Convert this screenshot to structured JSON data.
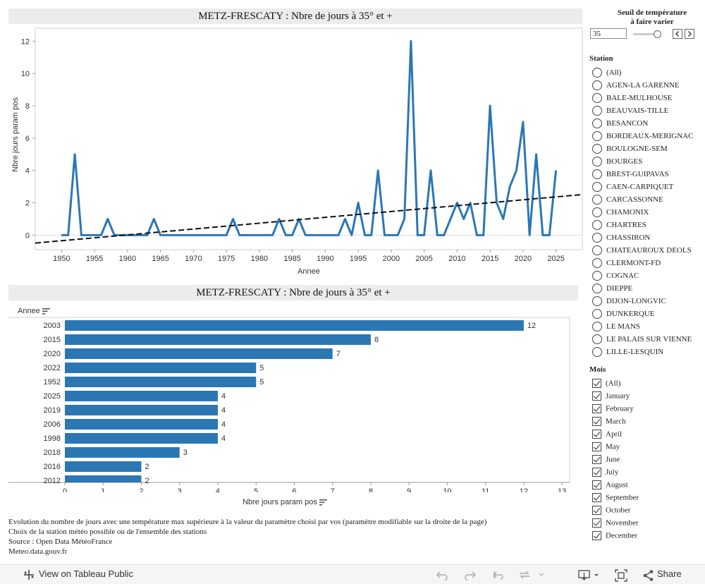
{
  "line_chart": {
    "title": "METZ-FRESCATY : Nbre de jours à  35° et +",
    "ylabel": "Nbre jours param pos",
    "xlabel": "Annee"
  },
  "bar_chart": {
    "title": "METZ-FRESCATY : Nbre de jours à 35° et +",
    "row_header": "Annee",
    "xlabel": "Nbre jours param pos"
  },
  "chart_data": [
    {
      "type": "line",
      "title": "METZ-FRESCATY : Nbre de jours à  35° et +",
      "xlabel": "Annee",
      "ylabel": "Nbre jours param pos",
      "x": [
        1950,
        1951,
        1952,
        1953,
        1954,
        1955,
        1956,
        1957,
        1958,
        1959,
        1960,
        1961,
        1962,
        1963,
        1964,
        1965,
        1966,
        1967,
        1968,
        1969,
        1970,
        1971,
        1972,
        1973,
        1974,
        1975,
        1976,
        1977,
        1978,
        1979,
        1980,
        1981,
        1982,
        1983,
        1984,
        1985,
        1986,
        1987,
        1988,
        1989,
        1990,
        1991,
        1992,
        1993,
        1994,
        1995,
        1996,
        1997,
        1998,
        1999,
        2000,
        2001,
        2002,
        2003,
        2004,
        2005,
        2006,
        2007,
        2008,
        2009,
        2010,
        2011,
        2012,
        2013,
        2014,
        2015,
        2016,
        2017,
        2018,
        2019,
        2020,
        2021,
        2022,
        2023,
        2024,
        2025
      ],
      "series": [
        {
          "name": "",
          "values": [
            0,
            0,
            5,
            0,
            0,
            0,
            0,
            1,
            0,
            0,
            0,
            0,
            0,
            0,
            1,
            0,
            0,
            0,
            0,
            0,
            0,
            0,
            0,
            0,
            0,
            0,
            1,
            0,
            0,
            0,
            0,
            0,
            0,
            1,
            0,
            0,
            1,
            0,
            0,
            0,
            0,
            0,
            0,
            1,
            0,
            2,
            0,
            0,
            4,
            0,
            0,
            0,
            1,
            12,
            0,
            0,
            4,
            0,
            0,
            1,
            2,
            1,
            2,
            0,
            0,
            8,
            2,
            1,
            3,
            4,
            7,
            0,
            5,
            0,
            0,
            4
          ]
        }
      ],
      "trend": {
        "x": [
          1946,
          2029
        ],
        "y": [
          -0.49,
          2.51
        ]
      },
      "xticks": [
        1950,
        1955,
        1960,
        1965,
        1970,
        1975,
        1980,
        1985,
        1990,
        1995,
        2000,
        2005,
        2010,
        2015,
        2020,
        2025
      ],
      "yticks": [
        0,
        2,
        4,
        6,
        8,
        10,
        12
      ],
      "xlim": [
        1946,
        2029
      ],
      "ylim": [
        -0.9,
        12.8
      ],
      "grid": false,
      "color": "#2a77b4"
    },
    {
      "type": "bar",
      "title": "METZ-FRESCATY : Nbre de jours à 35° et +",
      "xlabel": "Nbre jours param pos",
      "ylabel": "Annee",
      "categories": [
        "2003",
        "2015",
        "2020",
        "2022",
        "1952",
        "2025",
        "2019",
        "2006",
        "1998",
        "2018",
        "2016",
        "2012"
      ],
      "values": [
        12,
        8,
        7,
        5,
        5,
        4,
        4,
        4,
        4,
        3,
        2,
        2
      ],
      "xticks": [
        0,
        1,
        2,
        3,
        4,
        5,
        6,
        7,
        8,
        9,
        10,
        11,
        12,
        13
      ],
      "xlim": [
        0,
        13.2
      ],
      "color": "#2a77b4"
    }
  ],
  "notes": [
    "Evolution du nombre de jours avec une température max supérieure à la valeur du paramètre choisi par vos (paramètre modifiable sur la droite de la page)",
    "Choix de la station météo possible ou de l'ensemble des stations",
    "Source : Open Data MétéoFrance",
    "Meteo.data.gouv.fr"
  ],
  "panel": {
    "seuil_title_1": "Seuil de température",
    "seuil_title_2": "à faire varier",
    "seuil_value": "35",
    "station_title": "Station",
    "stations": [
      "(All)",
      "AGEN-LA GARENNE",
      "BALE-MULHOUSE",
      "BEAUVAIS-TILLE",
      "BESANCON",
      "BORDEAUX-MERIGNAC",
      "BOULOGNE-SEM",
      "BOURGES",
      "BREST-GUIPAVAS",
      "CAEN-CARPIQUET",
      "CARCASSONNE",
      "CHAMONIX",
      "CHARTRES",
      "CHASSIRON",
      "CHATEAUROUX DEOLS",
      "CLERMONT-FD",
      "COGNAC",
      "DIEPPE",
      "DIJON-LONGVIC",
      "DUNKERQUE",
      "LE MANS",
      "LE PALAIS SUR VIENNE",
      "LILLE-LESQUIN"
    ],
    "mois_title": "Mois",
    "mois": [
      "(All)",
      "January",
      "February",
      "March",
      "April",
      "May",
      "June",
      "July",
      "August",
      "September",
      "October",
      "November",
      "December"
    ]
  },
  "footer": {
    "view_link": "View on Tableau Public",
    "share": "Share"
  }
}
